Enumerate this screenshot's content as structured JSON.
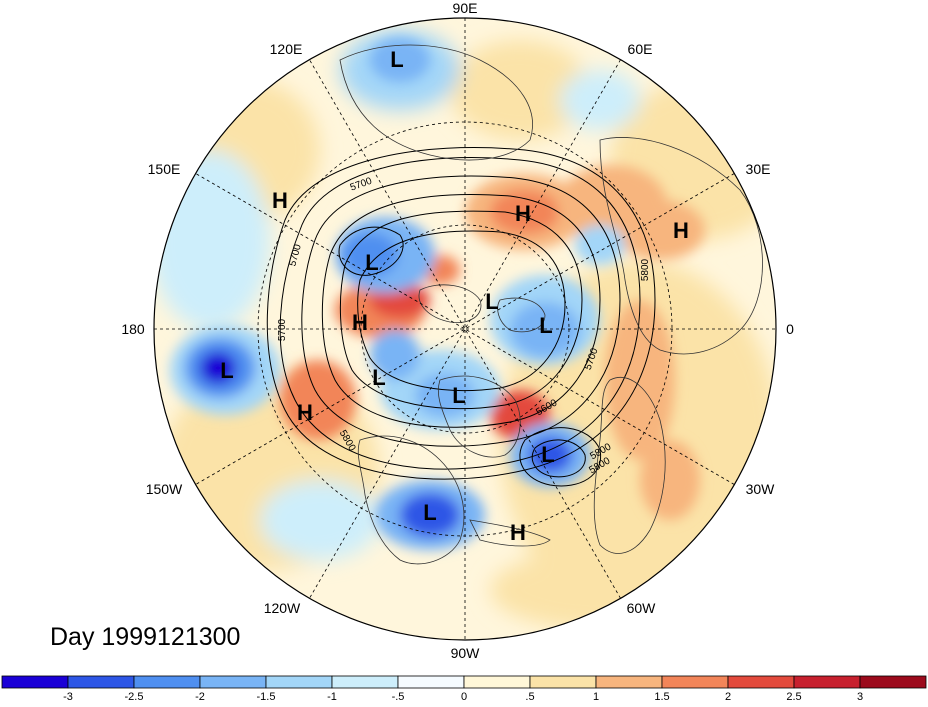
{
  "title": "Day 1999121300",
  "longitude_labels": [
    "90E",
    "60E",
    "30E",
    "0",
    "30W",
    "60W",
    "90W",
    "120W",
    "150W",
    "180",
    "150E",
    "120E"
  ],
  "contour_labels": [
    "5700",
    "5700",
    "5700",
    "5700",
    "5800",
    "5800",
    "5800",
    "5800",
    "5600"
  ],
  "pressure_centers": [
    {
      "type": "L"
    },
    {
      "type": "H"
    },
    {
      "type": "H"
    },
    {
      "type": "L"
    },
    {
      "type": "H"
    },
    {
      "type": "L"
    },
    {
      "type": "H"
    },
    {
      "type": "L"
    },
    {
      "type": "L"
    },
    {
      "type": "L"
    },
    {
      "type": "L"
    },
    {
      "type": "H"
    },
    {
      "type": "L"
    },
    {
      "type": "L"
    },
    {
      "type": "H"
    }
  ],
  "colorbar": {
    "tick_labels": [
      "-3",
      "-2.5",
      "-2",
      "-1.5",
      "-1",
      "-.5",
      "0",
      ".5",
      "1",
      "1.5",
      "2",
      "2.5",
      "3"
    ],
    "colors": [
      "#1a00d6",
      "#2d56e6",
      "#4f8ff0",
      "#79b4f5",
      "#a3d6f8",
      "#cdeefb",
      "#f5fbff",
      "#fff7d8",
      "#fbe3a8",
      "#f7b57e",
      "#f28559",
      "#e34a3c",
      "#c7202e",
      "#9c0a1c"
    ]
  }
}
